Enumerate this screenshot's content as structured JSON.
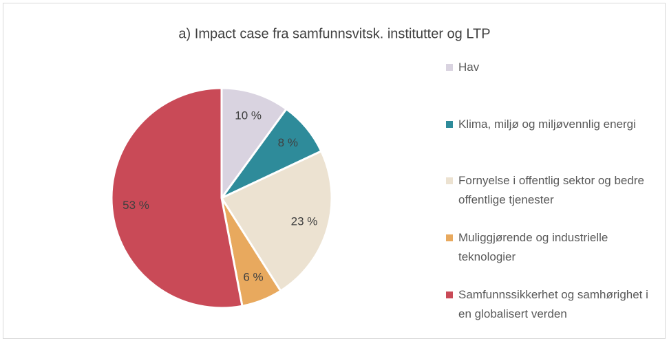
{
  "chart_data": {
    "type": "pie",
    "title": "a) Impact case fra samfunnsvitsk. institutter og LTP",
    "categories": [
      "Hav",
      "Klima, miljø og miljøvennlig energi",
      "Fornyelse i offentlig sektor og bedre offentlige tjenester",
      "Muliggjørende og industrielle teknologier",
      "Samfunnssikkerhet og samhørighet i en globalisert verden"
    ],
    "values": [
      10,
      8,
      23,
      6,
      53
    ],
    "value_labels": [
      "10 %",
      "8 %",
      "23 %",
      "6 %",
      "53 %"
    ],
    "colors": [
      "#d9d3e0",
      "#2e8b9a",
      "#ece2d1",
      "#e8a95e",
      "#c94a57"
    ],
    "legend": "right"
  }
}
